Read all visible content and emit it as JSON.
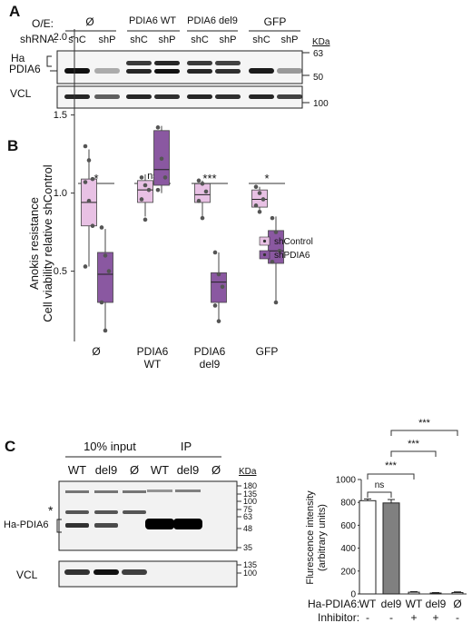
{
  "panelA": {
    "label": "A",
    "oe_label": "O/E:",
    "shrna_label": "shRNA:",
    "groups": [
      "Ø",
      "PDIA6 WT",
      "PDIA6 del9",
      "GFP"
    ],
    "lanes": [
      "shC",
      "shP",
      "shC",
      "shP",
      "shC",
      "shP",
      "shC",
      "shP"
    ],
    "kda_label": "KDa",
    "kda_top": [
      "63",
      "50"
    ],
    "kda_bottom": [
      "100"
    ],
    "band_ha": "Ha",
    "band_pdia6": "PDIA6",
    "band_vcl": "VCL",
    "top_bands": [
      {
        "lane": 0,
        "strength": 1.0,
        "double": false
      },
      {
        "lane": 1,
        "strength": 0.2,
        "double": false
      },
      {
        "lane": 2,
        "strength": 0.9,
        "double": true
      },
      {
        "lane": 3,
        "strength": 1.0,
        "double": true
      },
      {
        "lane": 4,
        "strength": 0.9,
        "double": true
      },
      {
        "lane": 5,
        "strength": 0.85,
        "double": true
      },
      {
        "lane": 6,
        "strength": 0.95,
        "double": false
      },
      {
        "lane": 7,
        "strength": 0.3,
        "double": false
      }
    ],
    "vcl_bands": [
      0.9,
      0.6,
      0.9,
      0.85,
      0.9,
      0.85,
      0.9,
      0.75
    ]
  },
  "panelB": {
    "label": "B",
    "sig": [
      "*",
      "ns",
      "***",
      "*"
    ],
    "chart_data": {
      "type": "boxplot",
      "ylabel_line1": "Anokis resistance",
      "ylabel_line2": "Cell viability relative shControl",
      "yticks": [
        "0.5",
        "1.0",
        "1.5",
        "2.0"
      ],
      "ylim": [
        0.05,
        2.05
      ],
      "categories": [
        "Ø",
        "PDIA6 WT",
        "PDIA6 del9",
        "GFP"
      ],
      "legend": [
        "shControl",
        "shPDIA6"
      ],
      "colors": {
        "shControl": "#e8c1e4",
        "shPDIA6": "#8a58a1"
      },
      "series": [
        {
          "name": "shControl",
          "boxes": [
            {
              "min": 0.53,
              "q1": 0.79,
              "median": 0.94,
              "q3": 1.09,
              "max": 1.28,
              "points": [
                1.3,
                1.21,
                1.09,
                1.07,
                0.95,
                0.79,
                0.53
              ]
            },
            {
              "min": 0.85,
              "q1": 0.94,
              "median": 1.02,
              "q3": 1.08,
              "max": 1.12,
              "points": [
                1.1,
                1.05,
                1.02,
                0.96,
                0.83
              ]
            },
            {
              "min": 0.83,
              "q1": 0.94,
              "median": 0.99,
              "q3": 1.06,
              "max": 1.08,
              "points": [
                1.08,
                1.06,
                1.01,
                0.95,
                0.84
              ]
            },
            {
              "min": 0.87,
              "q1": 0.91,
              "median": 0.96,
              "q3": 1.02,
              "max": 1.04,
              "points": [
                1.04,
                1.0,
                0.96,
                0.92,
                0.88
              ]
            }
          ]
        },
        {
          "name": "shPDIA6",
          "boxes": [
            {
              "min": 0.12,
              "q1": 0.3,
              "median": 0.48,
              "q3": 0.62,
              "max": 0.77,
              "points": [
                0.78,
                0.6,
                0.5,
                0.3,
                0.12
              ]
            },
            {
              "min": 1.0,
              "q1": 1.05,
              "median": 1.15,
              "q3": 1.4,
              "max": 1.43,
              "points": [
                1.42,
                1.22,
                1.1,
                1.02
              ]
            },
            {
              "min": 0.18,
              "q1": 0.3,
              "median": 0.43,
              "q3": 0.49,
              "max": 0.62,
              "points": [
                0.62,
                0.48,
                0.4,
                0.28,
                0.18
              ]
            },
            {
              "min": 0.3,
              "q1": 0.55,
              "median": 0.63,
              "q3": 0.76,
              "max": 0.85,
              "points": [
                0.84,
                0.75,
                0.63,
                0.56,
                0.3
              ]
            }
          ]
        }
      ]
    }
  },
  "panelC": {
    "label": "C",
    "input_label": "10% input",
    "ip_label": "IP",
    "lanes": [
      "WT",
      "del9",
      "Ø",
      "WT",
      "del9",
      "Ø"
    ],
    "kda_label": "KDa",
    "kda_top": [
      "180",
      "135",
      "100",
      "75",
      "63",
      "48",
      "35"
    ],
    "kda_bottom": [
      "135",
      "100"
    ],
    "star": "*",
    "ha_label": "Ha-PDIA6",
    "vcl_label": "VCL",
    "chart_data": {
      "type": "bar",
      "ylabel_line1": "Flurescence intensity",
      "ylabel_line2": "(arbitrary units)",
      "ylim": [
        0,
        1000
      ],
      "yticks": [
        "0",
        "200",
        "400",
        "600",
        "800",
        "1000"
      ],
      "row1_label": "Ha-PDIA6:",
      "row2_label": "Inhibitor:",
      "categories": [
        "WT",
        "del9",
        "WT",
        "del9",
        "Ø"
      ],
      "inhibitor": [
        "-",
        "-",
        "+",
        "+",
        "-"
      ],
      "values": [
        815,
        795,
        15,
        8,
        12
      ],
      "errors": [
        15,
        30,
        5,
        4,
        6
      ],
      "colors": [
        "#ffffff",
        "#808080",
        "#ffffff",
        "#808080",
        "#ffffff"
      ],
      "sig": [
        {
          "from": 0,
          "to": 1,
          "label": "ns"
        },
        {
          "from": 0,
          "to": 2,
          "label": "***"
        },
        {
          "from": 1,
          "to": 3,
          "label": "***"
        },
        {
          "from": 1,
          "to": 4,
          "label": "***"
        }
      ]
    }
  }
}
